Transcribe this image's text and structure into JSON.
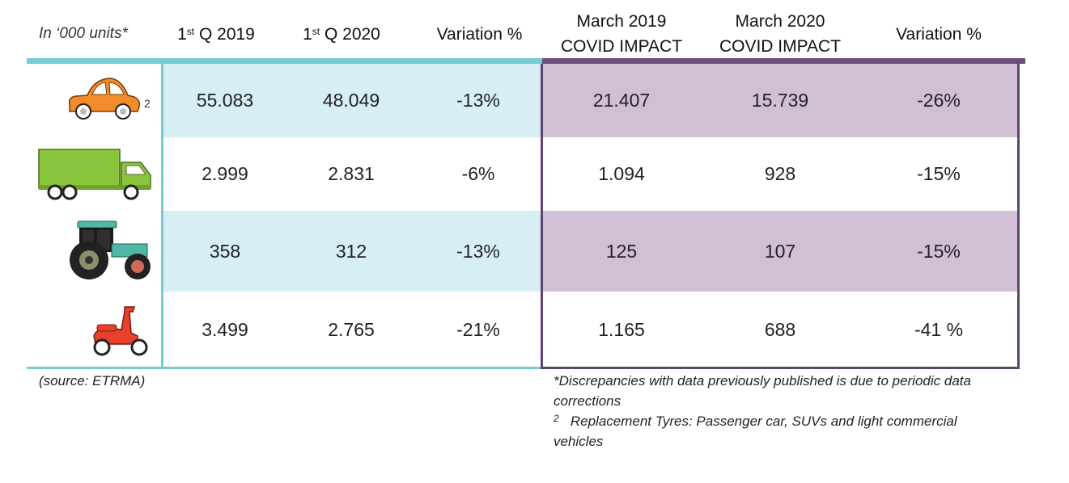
{
  "header": {
    "units_label": "In ‘000 units*",
    "columns": [
      {
        "main": "1",
        "sup": "st",
        "rest": " Q 2019"
      },
      {
        "main": "1",
        "sup": "st",
        "rest": " Q 2020"
      },
      {
        "line1": "Variation %"
      },
      {
        "line1": "March 2019",
        "line2": "COVID IMPACT"
      },
      {
        "line1": "March 2020",
        "line2": "COVID IMPACT"
      },
      {
        "line1": "Variation %"
      }
    ]
  },
  "colors": {
    "left_header_line": "#76cbd9",
    "left_band": "#d7eef4",
    "right_header_line": "#6b4f7b",
    "right_band": "#d1bfd6",
    "right_border": "#5e4670",
    "car": "#f28c2a",
    "truck": "#8cc63f",
    "tractor_cab": "#4fb8a6",
    "scooter": "#e8402a"
  },
  "rows": [
    {
      "icon": "passenger-car-icon",
      "icon_note": "2",
      "q1_2019": "55.083",
      "q1_2020": "48.049",
      "var_q": "-13%",
      "mar_2019": "21.407",
      "mar_2020": "15.739",
      "var_mar": "-26%"
    },
    {
      "icon": "truck-icon",
      "q1_2019": "2.999",
      "q1_2020": "2.831",
      "var_q": "-6%",
      "mar_2019": "1.094",
      "mar_2020": "928",
      "var_mar": "-15%"
    },
    {
      "icon": "tractor-icon",
      "q1_2019": "358",
      "q1_2020": "312",
      "var_q": "-13%",
      "mar_2019": "125",
      "mar_2020": "107",
      "var_mar": "-15%"
    },
    {
      "icon": "scooter-icon",
      "q1_2019": "3.499",
      "q1_2020": "2.765",
      "var_q": "-21%",
      "mar_2019": "1.165",
      "mar_2020": "688",
      "var_mar": "-41 %"
    }
  ],
  "footer": {
    "source": "(source: ETRMA)",
    "note1": "*Discrepancies with data previously published is due to periodic data corrections",
    "note2_marker": "2",
    "note2": "Replacement Tyres: Passenger car, SUVs and light commercial vehicles"
  },
  "chart_data": {
    "type": "table",
    "units": "In ‘000 units*",
    "columns": [
      "1st Q 2019",
      "1st Q 2020",
      "Variation %",
      "March 2019 COVID IMPACT",
      "March 2020 COVID IMPACT",
      "Variation %"
    ],
    "rows": [
      {
        "category_icon": "passenger-car-icon",
        "values": [
          "55.083",
          "48.049",
          "-13%",
          "21.407",
          "15.739",
          "-26%"
        ]
      },
      {
        "category_icon": "truck-icon",
        "values": [
          "2.999",
          "2.831",
          "-6%",
          "1.094",
          "928",
          "-15%"
        ]
      },
      {
        "category_icon": "tractor-icon",
        "values": [
          "358",
          "312",
          "-13%",
          "125",
          "107",
          "-15%"
        ]
      },
      {
        "category_icon": "scooter-icon",
        "values": [
          "3.499",
          "2.765",
          "-21%",
          "1.165",
          "688",
          "-41 %"
        ]
      }
    ]
  }
}
